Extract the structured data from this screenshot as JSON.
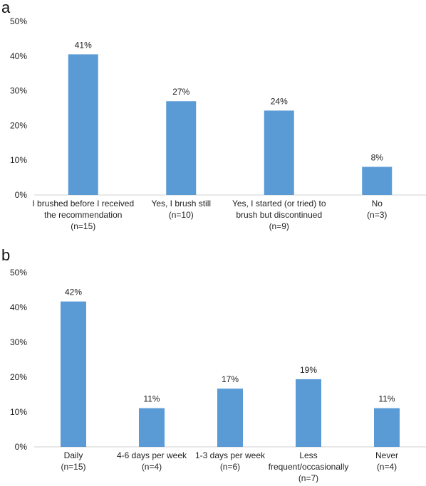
{
  "chart_data": [
    {
      "panel": "a",
      "type": "bar",
      "title": "",
      "xlabel": "",
      "ylabel": "",
      "ylim": [
        0,
        50
      ],
      "yticks": [
        "0%",
        "10%",
        "20%",
        "30%",
        "40%",
        "50%"
      ],
      "grid": false,
      "bar_color": "#5B9BD5",
      "categories": [
        [
          "I brushed before I received",
          "the recommendation",
          "(n=15)"
        ],
        [
          "Yes, I brush still",
          "(n=10)"
        ],
        [
          "Yes, I started (or tried) to",
          "brush but discontinued",
          "(n=9)"
        ],
        [
          "No",
          "(n=3)"
        ]
      ],
      "values": [
        40.5,
        27,
        24.3,
        8.1
      ],
      "data_labels": [
        "41%",
        "27%",
        "24%",
        "8%"
      ]
    },
    {
      "panel": "b",
      "type": "bar",
      "title": "",
      "xlabel": "",
      "ylabel": "",
      "ylim": [
        0,
        50
      ],
      "yticks": [
        "0%",
        "10%",
        "20%",
        "30%",
        "40%",
        "50%"
      ],
      "grid": false,
      "bar_color": "#5B9BD5",
      "categories": [
        [
          "Daily",
          "(n=15)"
        ],
        [
          "4-6 days per week",
          "(n=4)"
        ],
        [
          "1-3 days per week",
          "(n=6)"
        ],
        [
          "Less",
          "frequent/occasionally",
          "(n=7)"
        ],
        [
          "Never",
          "(n=4)"
        ]
      ],
      "values": [
        41.7,
        11.1,
        16.7,
        19.4,
        11.1
      ],
      "data_labels": [
        "42%",
        "11%",
        "17%",
        "19%",
        "11%"
      ]
    }
  ],
  "panels": {
    "a": {
      "letter": "a"
    },
    "b": {
      "letter": "b"
    }
  }
}
